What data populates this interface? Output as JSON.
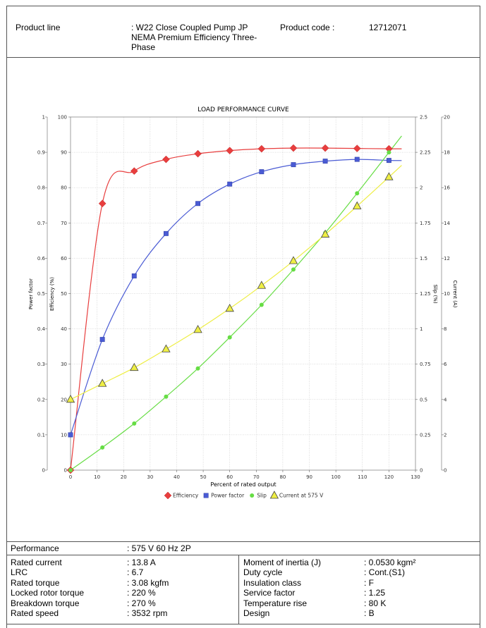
{
  "header": {
    "product_line_label": "Product line",
    "product_line_value_1": ": W22 Close Coupled Pump JP",
    "product_line_value_2": "NEMA Premium Efficiency Three-",
    "product_line_value_3": "Phase",
    "product_code_label": "Product code :",
    "product_code_value": "12712071"
  },
  "chart_data": {
    "type": "line",
    "title": "LOAD PERFORMANCE CURVE",
    "xlabel": "Percent of rated output",
    "xlim": [
      0,
      130
    ],
    "x_ticks": [
      "0",
      "10",
      "20",
      "30",
      "40",
      "50",
      "60",
      "70",
      "80",
      "90",
      "100",
      "110",
      "120",
      "130"
    ],
    "axes": {
      "power_factor": {
        "label": "Power factor",
        "ticks": [
          "0",
          "0.1",
          "0.2",
          "0.3",
          "0.4",
          "0.5",
          "0.6",
          "0.7",
          "0.8",
          "0.9",
          "1"
        ],
        "range": [
          0,
          1
        ]
      },
      "efficiency": {
        "label": "Efficiency (%)",
        "ticks": [
          "0",
          "10",
          "20",
          "30",
          "40",
          "50",
          "60",
          "70",
          "80",
          "90",
          "100"
        ],
        "range": [
          0,
          100
        ]
      },
      "slip": {
        "label": "Slip (%)",
        "ticks": [
          "0",
          "0.25",
          "0.5",
          "0.75",
          "1",
          "1.25",
          "1.5",
          "1.75",
          "2",
          "2.25",
          "2.5"
        ],
        "range": [
          0,
          2.5
        ]
      },
      "current": {
        "label": "Current (A)",
        "ticks": [
          "0",
          "2",
          "4",
          "6",
          "8",
          "10",
          "12",
          "14",
          "16",
          "18",
          "20"
        ],
        "range": [
          0,
          20
        ]
      }
    },
    "legend_position": "bottom",
    "series": [
      {
        "name": "Efficiency",
        "axis": "efficiency",
        "color": "#e83e3e",
        "marker": "diamond",
        "x": [
          0,
          12,
          24,
          36,
          48,
          60,
          72,
          84,
          96,
          108,
          120
        ],
        "y": [
          0,
          75.5,
          84.7,
          88.0,
          89.6,
          90.5,
          91.0,
          91.2,
          91.2,
          91.1,
          91.0
        ]
      },
      {
        "name": "Power factor",
        "axis": "power_factor",
        "color": "#4a5bd4",
        "marker": "square",
        "x": [
          0,
          12,
          24,
          36,
          48,
          60,
          72,
          84,
          96,
          108,
          120
        ],
        "y": [
          0.1,
          0.37,
          0.55,
          0.67,
          0.755,
          0.81,
          0.845,
          0.865,
          0.875,
          0.88,
          0.877
        ]
      },
      {
        "name": "Slip",
        "axis": "slip",
        "color": "#66dd44",
        "marker": "circle",
        "x": [
          0,
          12,
          24,
          36,
          48,
          60,
          72,
          84,
          96,
          108,
          120
        ],
        "y": [
          0.0,
          0.16,
          0.33,
          0.52,
          0.72,
          0.94,
          1.17,
          1.42,
          1.68,
          1.96,
          2.25
        ]
      },
      {
        "name": "Current at 575 V",
        "axis": "current",
        "color": "#eeee44",
        "marker": "triangle",
        "x": [
          0,
          12,
          24,
          36,
          48,
          60,
          72,
          84,
          96,
          108,
          120
        ],
        "y": [
          4.0,
          4.9,
          5.8,
          6.85,
          7.95,
          9.15,
          10.45,
          11.85,
          13.35,
          14.95,
          16.6
        ]
      }
    ]
  },
  "specs": {
    "performance_label": "Performance",
    "performance_value": ": 575 V 60 Hz 2P",
    "left": [
      {
        "label": "Rated current",
        "value": ": 13.8 A"
      },
      {
        "label": "LRC",
        "value": ": 6.7"
      },
      {
        "label": "Rated torque",
        "value": ": 3.08 kgfm"
      },
      {
        "label": "Locked rotor torque",
        "value": ": 220 %"
      },
      {
        "label": "Breakdown torque",
        "value": ": 270 %"
      },
      {
        "label": "Rated speed",
        "value": ": 3532 rpm"
      }
    ],
    "right": [
      {
        "label": "Moment of inertia (J)",
        "value": ": 0.0530 kgm²"
      },
      {
        "label": "Duty cycle",
        "value": ": Cont.(S1)"
      },
      {
        "label": "Insulation class",
        "value": ": F"
      },
      {
        "label": "Service factor",
        "value": ": 1.25"
      },
      {
        "label": "Temperature rise",
        "value": ": 80 K"
      },
      {
        "label": "Design",
        "value": ": B"
      }
    ]
  }
}
